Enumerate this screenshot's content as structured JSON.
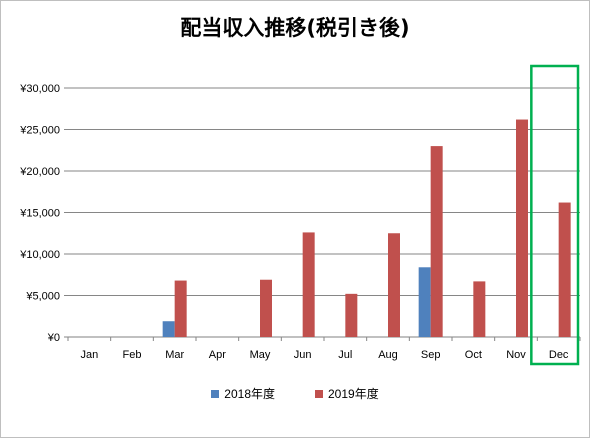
{
  "chart_data": {
    "type": "bar",
    "title": "配当収入推移(税引き後)",
    "categories": [
      "Jan",
      "Feb",
      "Mar",
      "Apr",
      "May",
      "Jun",
      "Jul",
      "Aug",
      "Sep",
      "Oct",
      "Nov",
      "Dec"
    ],
    "series": [
      {
        "name": "2018年度",
        "color": "#4f81bd",
        "values": [
          0,
          0,
          1900,
          0,
          0,
          0,
          0,
          0,
          8400,
          0,
          0,
          0
        ]
      },
      {
        "name": "2019年度",
        "color": "#c0504d",
        "values": [
          0,
          0,
          6800,
          0,
          6900,
          12600,
          5200,
          12500,
          23000,
          6700,
          26200,
          16200
        ]
      }
    ],
    "y_ticks": [
      "¥0",
      "¥5,000",
      "¥10,000",
      "¥15,000",
      "¥20,000",
      "¥25,000",
      "¥30,000"
    ],
    "ylim": [
      0,
      30000
    ],
    "y_step": 5000,
    "grid": true,
    "legend_position": "bottom",
    "highlight": {
      "category": "Dec",
      "color": "#00b050"
    }
  }
}
